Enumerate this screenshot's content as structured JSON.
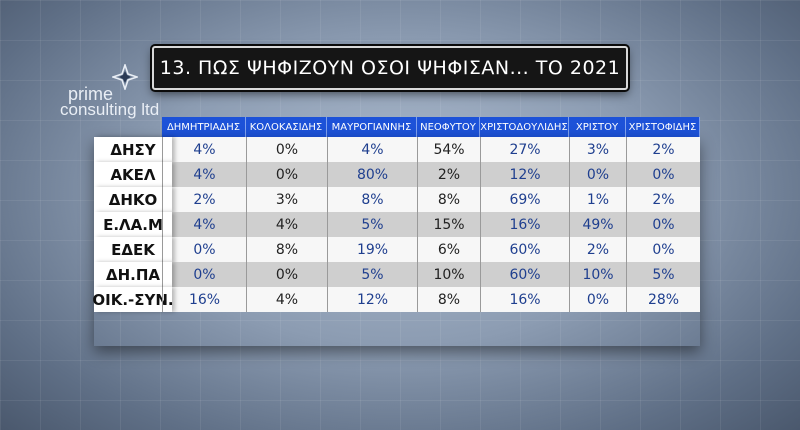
{
  "title": "13. ΠΩΣ ΨΗΦΙΖΟΥΝ ΟΣΟΙ ΨΗΦΙΣΑΝ... ΤΟ 2021",
  "logo": {
    "word1": "prime",
    "word2": "consulting ltd",
    "icon": "star-icon"
  },
  "colors": {
    "header_bg": "#1d52d8",
    "value_blue": "#1f3f8f",
    "title_bg": "#151515"
  },
  "chart_data": {
    "type": "table",
    "title": "13. ΠΩΣ ΨΗΦΙΖΟΥΝ ΟΣΟΙ ΨΗΦΙΣΑΝ... ΤΟ 2021",
    "columns": [
      "ΔΗΜΗΤΡΙΑΔΗΣ",
      "ΚΟΛΟΚΑΣΙΔΗΣ",
      "ΜΑΥΡΟΓΙΑΝΝΗΣ",
      "ΝΕΟΦΥΤΟΥ",
      "ΧΡΙΣΤΟΔΟΥΛΙΔΗΣ",
      "ΧΡΙΣΤΟΥ",
      "ΧΡΙΣΤΟΦΙΔΗΣ"
    ],
    "rows": [
      {
        "label": "ΔΗΣΥ",
        "values": [
          "4%",
          "0%",
          "4%",
          "54%",
          "27%",
          "3%",
          "2%"
        ]
      },
      {
        "label": "ΑΚΕΛ",
        "values": [
          "4%",
          "0%",
          "80%",
          "2%",
          "12%",
          "0%",
          "0%"
        ]
      },
      {
        "label": "ΔΗΚΟ",
        "values": [
          "2%",
          "3%",
          "8%",
          "8%",
          "69%",
          "1%",
          "2%"
        ]
      },
      {
        "label": "Ε.ΛΑ.Μ",
        "values": [
          "4%",
          "4%",
          "5%",
          "15%",
          "16%",
          "49%",
          "0%"
        ]
      },
      {
        "label": "ΕΔΕΚ",
        "values": [
          "0%",
          "8%",
          "19%",
          "6%",
          "60%",
          "2%",
          "0%"
        ]
      },
      {
        "label": "ΔΗ.ΠΑ",
        "values": [
          "0%",
          "0%",
          "5%",
          "10%",
          "60%",
          "10%",
          "5%"
        ]
      },
      {
        "label": "ΟΙΚ.-ΣΥΝ.",
        "values": [
          "16%",
          "4%",
          "12%",
          "8%",
          "16%",
          "0%",
          "28%"
        ]
      }
    ]
  }
}
